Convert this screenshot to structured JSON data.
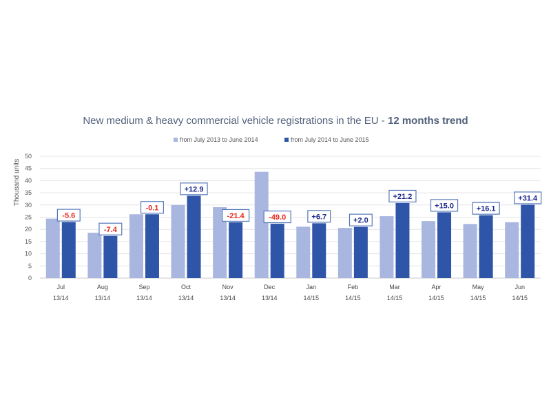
{
  "chart_data": {
    "type": "bar",
    "title": "New medium & heavy commercial vehicle registrations in the EU - ",
    "title_bold": "12 months trend",
    "ylabel": "Thousand units",
    "ylim": [
      0,
      50
    ],
    "yticks": [
      0,
      5,
      10,
      15,
      20,
      25,
      30,
      35,
      40,
      45,
      50
    ],
    "grid": true,
    "legend_position": "top-center",
    "categories": [
      {
        "month": "Jul",
        "period": "13/14"
      },
      {
        "month": "Aug",
        "period": "13/14"
      },
      {
        "month": "Sep",
        "period": "13/14"
      },
      {
        "month": "Oct",
        "period": "13/14"
      },
      {
        "month": "Nov",
        "period": "13/14"
      },
      {
        "month": "Dec",
        "period": "13/14"
      },
      {
        "month": "Jan",
        "period": "14/15"
      },
      {
        "month": "Feb",
        "period": "14/15"
      },
      {
        "month": "Mar",
        "period": "14/15"
      },
      {
        "month": "Apr",
        "period": "14/15"
      },
      {
        "month": "May",
        "period": "14/15"
      },
      {
        "month": "Jun",
        "period": "14/15"
      }
    ],
    "series": [
      {
        "name": "from July 2013 to June 2014",
        "color": "#a9b6e0",
        "values": [
          24.4,
          18.6,
          26.2,
          30.0,
          29.1,
          43.6,
          21.1,
          20.6,
          25.4,
          23.4,
          22.2,
          22.9
        ]
      },
      {
        "name": "from July 2014 to June 2015",
        "color": "#2e55a8",
        "values": [
          23.0,
          17.3,
          26.2,
          33.8,
          22.9,
          22.3,
          22.5,
          21.0,
          30.8,
          27.0,
          25.8,
          30.1
        ]
      }
    ],
    "change_labels": [
      "-5.6",
      "-7.4",
      "-0.1",
      "+12.9",
      "-21.4",
      "-49.0",
      "+6.7",
      "+2.0",
      "+21.2",
      "+15.0",
      "+16.1",
      "+31.4"
    ],
    "change_colors": {
      "negative": "#e8281e",
      "positive": "#1c2a8a"
    }
  }
}
